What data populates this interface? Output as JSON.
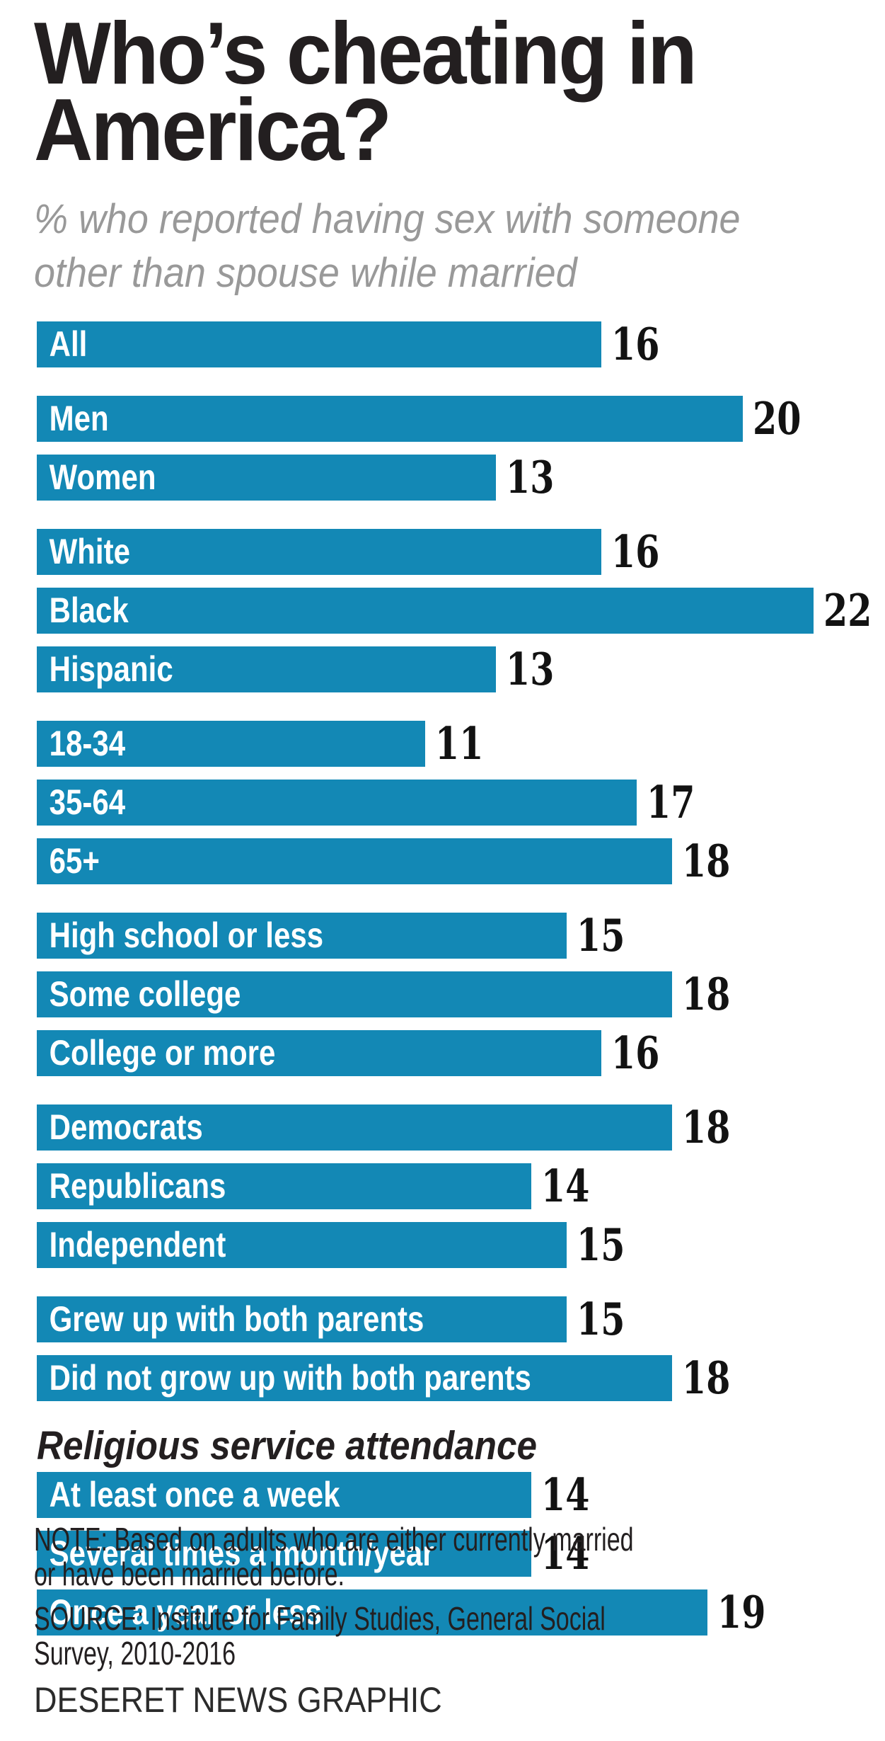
{
  "title": {
    "line1": "Who’s cheating in",
    "line2": "America?"
  },
  "subtitle": {
    "line1": "% who reported having sex with someone",
    "line2": "other than spouse while married"
  },
  "note": {
    "line1": "NOTE: Based on adults who are either currently married",
    "line2": "or have been married before."
  },
  "source": {
    "line1": "SOURCE: Institute for Family Studies, General Social",
    "line2": "Survey, 2010-2016"
  },
  "credit": "DESERET NEWS GRAPHIC",
  "colors": {
    "bar": "#1388B5",
    "title": "#231F20",
    "subtitle": "#999999",
    "value": "#121212"
  },
  "chart_data": {
    "type": "bar",
    "orientation": "horizontal",
    "unit": "%",
    "xlim": [
      0,
      22
    ],
    "grid": false,
    "legend": "none",
    "title": "Who's cheating in America?",
    "subtitle": "% who reported having sex with someone other than spouse while married",
    "categories": [
      "All",
      "Men",
      "Women",
      "White",
      "Black",
      "Hispanic",
      "18-34",
      "35-64",
      "65+",
      "High school or less",
      "Some college",
      "College or more",
      "Democrats",
      "Republicans",
      "Independent",
      "Grew up with both parents",
      "Did not grow up with both parents",
      "At least once a week",
      "Several times a month/year",
      "Once a year or less"
    ],
    "values": [
      16,
      20,
      13,
      16,
      22,
      13,
      11,
      17,
      18,
      15,
      18,
      16,
      18,
      14,
      15,
      15,
      18,
      14,
      14,
      19
    ],
    "groups": [
      {
        "header": null,
        "bars": [
          {
            "label": "All",
            "value": 16
          }
        ]
      },
      {
        "header": null,
        "bars": [
          {
            "label": "Men",
            "value": 20
          },
          {
            "label": "Women",
            "value": 13
          }
        ]
      },
      {
        "header": null,
        "bars": [
          {
            "label": "White",
            "value": 16
          },
          {
            "label": "Black",
            "value": 22
          },
          {
            "label": "Hispanic",
            "value": 13
          }
        ]
      },
      {
        "header": null,
        "bars": [
          {
            "label": "18-34",
            "value": 11
          },
          {
            "label": "35-64",
            "value": 17
          },
          {
            "label": "65+",
            "value": 18
          }
        ]
      },
      {
        "header": null,
        "bars": [
          {
            "label": "High school or less",
            "value": 15
          },
          {
            "label": "Some college",
            "value": 18
          },
          {
            "label": "College or more",
            "value": 16
          }
        ]
      },
      {
        "header": null,
        "bars": [
          {
            "label": "Democrats",
            "value": 18
          },
          {
            "label": "Republicans",
            "value": 14
          },
          {
            "label": "Independent",
            "value": 15
          }
        ]
      },
      {
        "header": null,
        "bars": [
          {
            "label": "Grew up with both parents",
            "value": 15
          },
          {
            "label": "Did not grow up with both parents",
            "value": 18
          }
        ]
      },
      {
        "header": "Religious service attendance",
        "bars": [
          {
            "label": "At least once a week",
            "value": 14
          },
          {
            "label": "Several times a month/year",
            "value": 14
          },
          {
            "label": "Once a year or less",
            "value": 19
          }
        ]
      }
    ]
  }
}
